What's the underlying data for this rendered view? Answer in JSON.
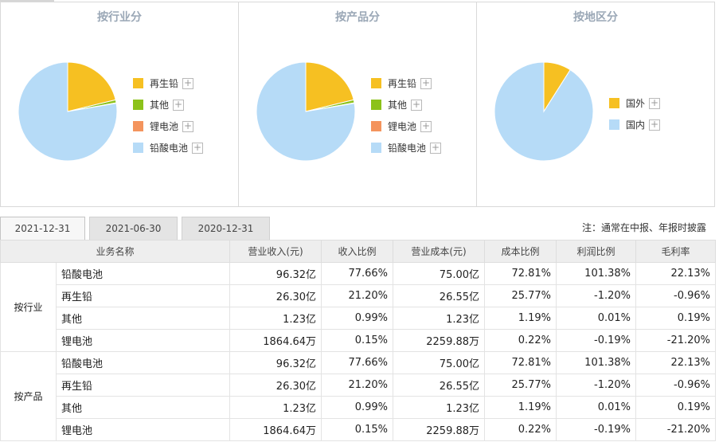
{
  "chart_data": [
    {
      "type": "pie",
      "title": "按行业分",
      "labels": [
        "再生铅",
        "其他",
        "锂电池",
        "铅酸电池"
      ],
      "values": [
        21.2,
        0.99,
        0.15,
        77.66
      ],
      "colors": [
        "#f6c022",
        "#8cc21a",
        "#f4945d",
        "#b6dbf7"
      ]
    },
    {
      "type": "pie",
      "title": "按产品分",
      "labels": [
        "再生铅",
        "其他",
        "锂电池",
        "铅酸电池"
      ],
      "values": [
        21.2,
        0.99,
        0.15,
        77.66
      ],
      "colors": [
        "#f6c022",
        "#8cc21a",
        "#f4945d",
        "#b6dbf7"
      ]
    },
    {
      "type": "pie",
      "title": "按地区分",
      "labels": [
        "国外",
        "国内"
      ],
      "values": [
        9,
        91
      ],
      "colors": [
        "#f6c022",
        "#b6dbf7"
      ]
    }
  ],
  "tabs": [
    "2021-12-31",
    "2021-06-30",
    "2020-12-31"
  ],
  "note": "注：通常在中报、年报时披露",
  "table": {
    "headers": [
      "业务名称",
      "营业收入(元)",
      "收入比例",
      "营业成本(元)",
      "成本比例",
      "利润比例",
      "毛利率"
    ],
    "groups": [
      {
        "name": "按行业",
        "rows": [
          [
            "铅酸电池",
            "96.32亿",
            "77.66%",
            "75.00亿",
            "72.81%",
            "101.38%",
            "22.13%"
          ],
          [
            "再生铅",
            "26.30亿",
            "21.20%",
            "26.55亿",
            "25.77%",
            "-1.20%",
            "-0.96%"
          ],
          [
            "其他",
            "1.23亿",
            "0.99%",
            "1.23亿",
            "1.19%",
            "0.01%",
            "0.19%"
          ],
          [
            "锂电池",
            "1864.64万",
            "0.15%",
            "2259.88万",
            "0.22%",
            "-0.19%",
            "-21.20%"
          ]
        ]
      },
      {
        "name": "按产品",
        "rows": [
          [
            "铅酸电池",
            "96.32亿",
            "77.66%",
            "75.00亿",
            "72.81%",
            "101.38%",
            "22.13%"
          ],
          [
            "再生铅",
            "26.30亿",
            "21.20%",
            "26.55亿",
            "25.77%",
            "-1.20%",
            "-0.96%"
          ],
          [
            "其他",
            "1.23亿",
            "0.99%",
            "1.23亿",
            "1.19%",
            "0.01%",
            "0.19%"
          ],
          [
            "锂电池",
            "1864.64万",
            "0.15%",
            "2259.88万",
            "0.22%",
            "-0.19%",
            "-21.20%"
          ]
        ]
      }
    ]
  }
}
